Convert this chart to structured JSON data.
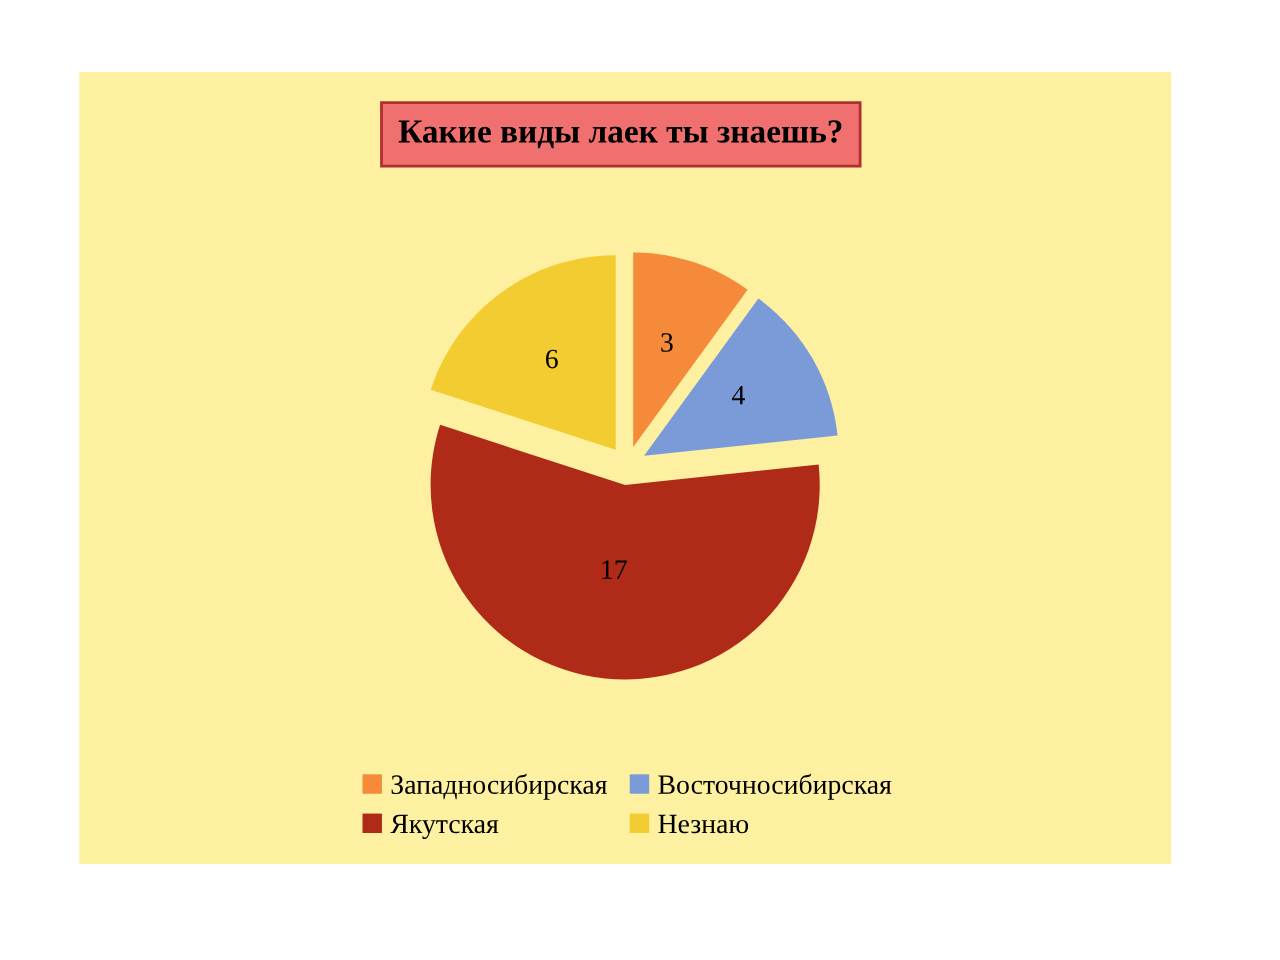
{
  "chart_data": {
    "type": "pie",
    "title": "Какие виды лаек ты знаешь?",
    "categories": [
      "Западносибирская",
      "Восточносибирская",
      "Якутская",
      "Незнаю"
    ],
    "values": [
      3,
      4,
      17,
      6
    ],
    "colors": [
      "#f58a3a",
      "#7b9bd8",
      "#b02a18",
      "#f2cc30"
    ],
    "data_labels": true,
    "legend": "bottom"
  }
}
